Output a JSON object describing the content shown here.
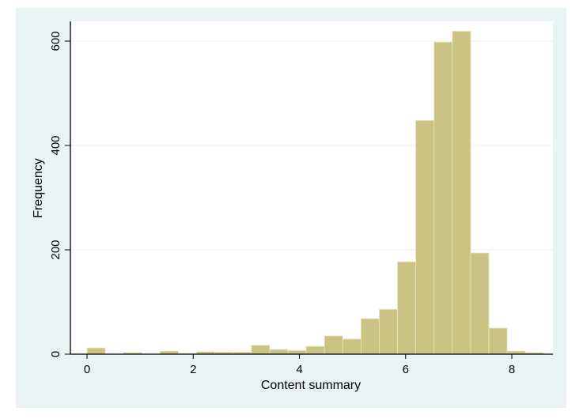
{
  "chart_data": {
    "type": "bar",
    "subtype": "histogram",
    "xlabel": "Content summary",
    "ylabel": "Frequency",
    "bin_start": 0,
    "bin_width": 0.344,
    "values": [
      12,
      0,
      3,
      0,
      6,
      1,
      5,
      4,
      4,
      17,
      9,
      7,
      15,
      35,
      29,
      68,
      86,
      177,
      448,
      598,
      619,
      194,
      50,
      6,
      3
    ],
    "xticks": [
      "0",
      "2",
      "4",
      "6",
      "8"
    ],
    "yticks": [
      "0",
      "200",
      "400",
      "600"
    ],
    "xlim": [
      -0.3,
      8.75
    ],
    "ylim": [
      0,
      650
    ],
    "grid": "horizontal",
    "colors": {
      "bar": "#cbc383",
      "bar_edge": "#ebe6c0",
      "graph_region": "#eaf2f3",
      "plot_region": "#ffffff",
      "grid": "#eaf2f3"
    }
  }
}
